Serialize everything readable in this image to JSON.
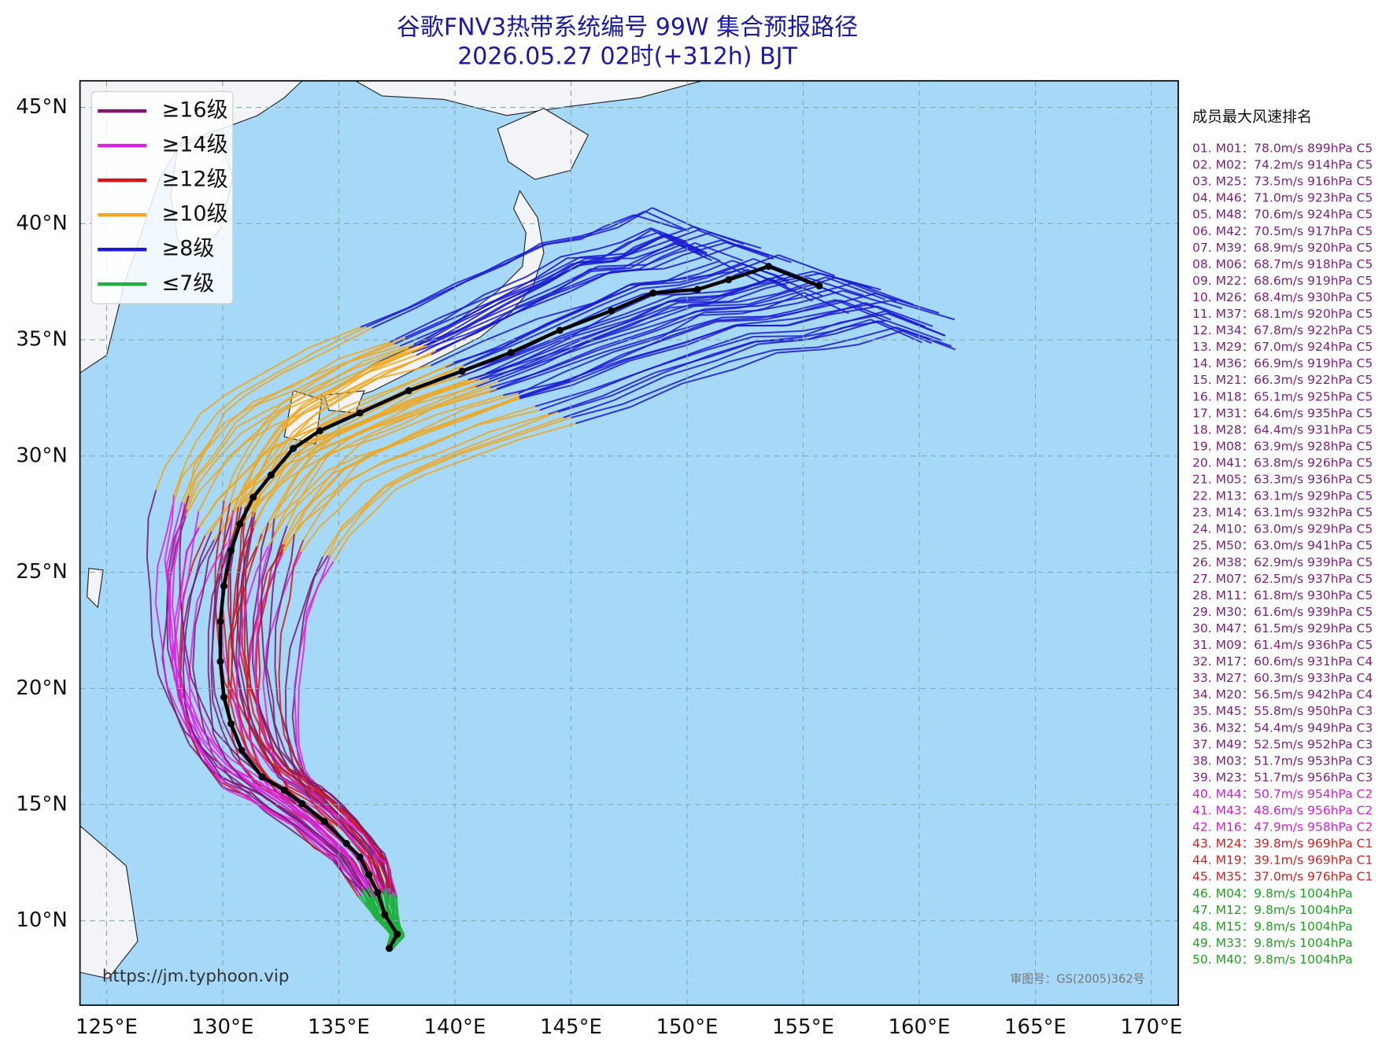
{
  "header": {
    "title": "谷歌FNV3热带系统编号 99W 集合预报路径",
    "subtitle": "2026.05.27 02时(+312h) BJT"
  },
  "map": {
    "lat_ticks": [
      {
        "value": 45,
        "label": "45°N"
      },
      {
        "value": 40,
        "label": "40°N"
      },
      {
        "value": 35,
        "label": "35°N"
      },
      {
        "value": 30,
        "label": "30°N"
      },
      {
        "value": 25,
        "label": "25°N"
      },
      {
        "value": 20,
        "label": "20°N"
      },
      {
        "value": 15,
        "label": "15°N"
      },
      {
        "value": 10,
        "label": "10°N"
      }
    ],
    "lon_ticks": [
      {
        "value": 125,
        "label": "125°E"
      },
      {
        "value": 130,
        "label": "130°E"
      },
      {
        "value": 135,
        "label": "135°E"
      },
      {
        "value": 140,
        "label": "140°E"
      },
      {
        "value": 145,
        "label": "145°E"
      },
      {
        "value": 150,
        "label": "150°E"
      },
      {
        "value": 155,
        "label": "155°E"
      },
      {
        "value": 160,
        "label": "160°E"
      },
      {
        "value": 165,
        "label": "165°E"
      },
      {
        "value": 170,
        "label": "170°E"
      }
    ],
    "source": "https://jm.typhoon.vip",
    "approval": "审图号：GS(2005)362号"
  },
  "legend": [
    {
      "label": "≥16级",
      "color": "#7b1a6e"
    },
    {
      "label": "≥14级",
      "color": "#e020e0"
    },
    {
      "label": "≥12级",
      "color": "#d01818"
    },
    {
      "label": "≥10级",
      "color": "#f0a820"
    },
    {
      "label": "≥8级",
      "color": "#1a1ad0"
    },
    {
      "label": "≤7级",
      "color": "#20b040"
    }
  ],
  "ranking": {
    "title": "成员最大风速排名",
    "items": [
      {
        "text": "01. M01：78.0m/s 899hPa C5",
        "color": "#7b1f7b"
      },
      {
        "text": "02. M02：74.2m/s 914hPa C5",
        "color": "#7b1f7b"
      },
      {
        "text": "03. M25：73.5m/s 916hPa C5",
        "color": "#7b1f7b"
      },
      {
        "text": "04. M46：71.0m/s 923hPa C5",
        "color": "#7b1f7b"
      },
      {
        "text": "05. M48：70.6m/s 924hPa C5",
        "color": "#7b1f7b"
      },
      {
        "text": "06. M42：70.5m/s 917hPa C5",
        "color": "#7b1f7b"
      },
      {
        "text": "07. M39：68.9m/s 920hPa C5",
        "color": "#7b1f7b"
      },
      {
        "text": "08. M06：68.7m/s 918hPa C5",
        "color": "#7b1f7b"
      },
      {
        "text": "09. M22：68.6m/s 919hPa C5",
        "color": "#7b1f7b"
      },
      {
        "text": "10. M26：68.4m/s 930hPa C5",
        "color": "#7b1f7b"
      },
      {
        "text": "11. M37：68.1m/s 920hPa C5",
        "color": "#7b1f7b"
      },
      {
        "text": "12. M34：67.8m/s 922hPa C5",
        "color": "#7b1f7b"
      },
      {
        "text": "13. M29：67.0m/s 924hPa C5",
        "color": "#7b1f7b"
      },
      {
        "text": "14. M36：66.9m/s 919hPa C5",
        "color": "#7b1f7b"
      },
      {
        "text": "15. M21：66.3m/s 922hPa C5",
        "color": "#7b1f7b"
      },
      {
        "text": "16. M18：65.1m/s 925hPa C5",
        "color": "#7b1f7b"
      },
      {
        "text": "17. M31：64.6m/s 935hPa C5",
        "color": "#7b1f7b"
      },
      {
        "text": "18. M28：64.4m/s 931hPa C5",
        "color": "#7b1f7b"
      },
      {
        "text": "19. M08：63.9m/s 928hPa C5",
        "color": "#7b1f7b"
      },
      {
        "text": "20. M41：63.8m/s 926hPa C5",
        "color": "#7b1f7b"
      },
      {
        "text": "21. M05：63.3m/s 936hPa C5",
        "color": "#7b1f7b"
      },
      {
        "text": "22. M13：63.1m/s 929hPa C5",
        "color": "#7b1f7b"
      },
      {
        "text": "23. M14：63.1m/s 932hPa C5",
        "color": "#7b1f7b"
      },
      {
        "text": "24. M10：63.0m/s 929hPa C5",
        "color": "#7b1f7b"
      },
      {
        "text": "25. M50：63.0m/s 941hPa C5",
        "color": "#7b1f7b"
      },
      {
        "text": "26. M38：62.9m/s 939hPa C5",
        "color": "#7b1f7b"
      },
      {
        "text": "27. M07：62.5m/s 937hPa C5",
        "color": "#7b1f7b"
      },
      {
        "text": "28. M11：61.8m/s 930hPa C5",
        "color": "#7b1f7b"
      },
      {
        "text": "29. M30：61.6m/s 939hPa C5",
        "color": "#7b1f7b"
      },
      {
        "text": "30. M47：61.5m/s 929hPa C5",
        "color": "#7b1f7b"
      },
      {
        "text": "31. M09：61.4m/s 936hPa C5",
        "color": "#7b1f7b"
      },
      {
        "text": "32. M17：60.6m/s 931hPa C4",
        "color": "#7b1f7b"
      },
      {
        "text": "33. M27：60.3m/s 933hPa C4",
        "color": "#7b1f7b"
      },
      {
        "text": "34. M20：56.5m/s 942hPa C4",
        "color": "#7b1f7b"
      },
      {
        "text": "35. M45：55.8m/s 950hPa C3",
        "color": "#7b1f7b"
      },
      {
        "text": "36. M32：54.4m/s 949hPa C3",
        "color": "#7b1f7b"
      },
      {
        "text": "37. M49：52.5m/s 952hPa C3",
        "color": "#7b1f7b"
      },
      {
        "text": "38. M03：51.7m/s 953hPa C3",
        "color": "#7b1f7b"
      },
      {
        "text": "39. M23：51.7m/s 956hPa C3",
        "color": "#7b1f7b"
      },
      {
        "text": "40. M44：50.7m/s 954hPa C2",
        "color": "#d020d0"
      },
      {
        "text": "41. M43：48.6m/s 956hPa C2",
        "color": "#d020d0"
      },
      {
        "text": "42. M16：47.9m/s 958hPa C2",
        "color": "#d020d0"
      },
      {
        "text": "43. M24：39.8m/s 969hPa C1",
        "color": "#d02020"
      },
      {
        "text": "44. M19：39.1m/s 969hPa C1",
        "color": "#d02020"
      },
      {
        "text": "45. M35：37.0m/s 976hPa C1",
        "color": "#d02020"
      },
      {
        "text": "46. M04：9.8m/s 1004hPa",
        "color": "#20a020"
      },
      {
        "text": "47. M12：9.8m/s 1004hPa",
        "color": "#20a020"
      },
      {
        "text": "48. M15：9.8m/s 1004hPa",
        "color": "#20a020"
      },
      {
        "text": "49. M33：9.8m/s 1004hPa",
        "color": "#20a020"
      },
      {
        "text": "50. M40：9.8m/s 1004hPa",
        "color": "#20a020"
      }
    ]
  }
}
